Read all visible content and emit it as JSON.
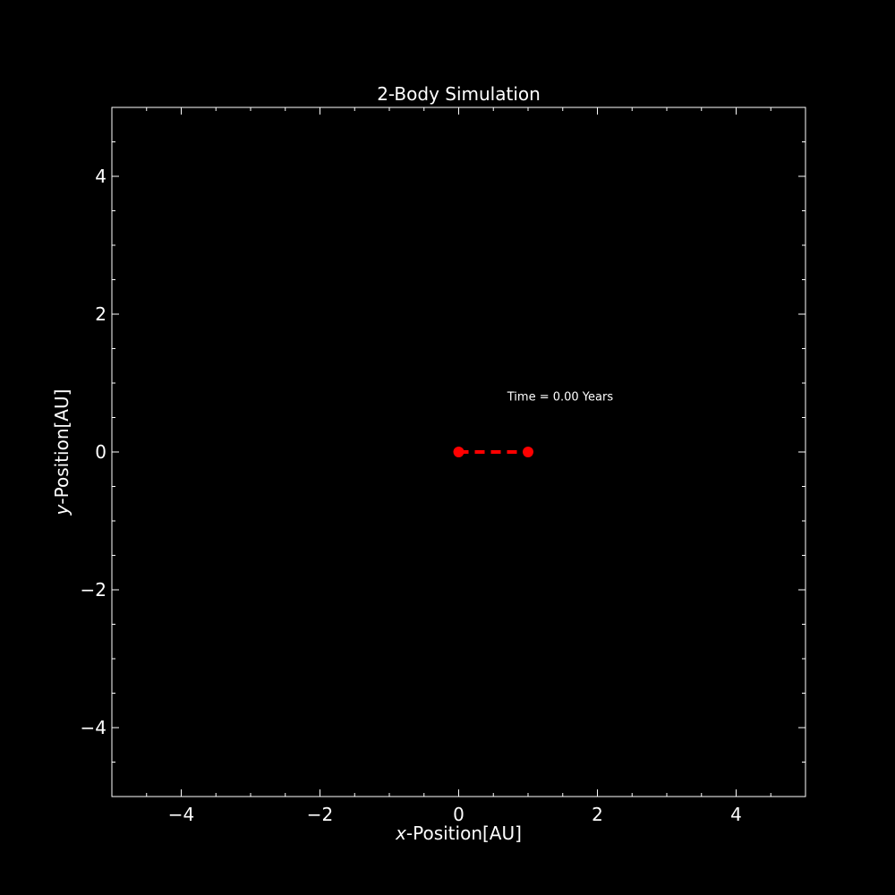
{
  "chart_data": {
    "type": "scatter",
    "title": "2-Body Simulation",
    "xlabel_var": "x",
    "xlabel_rest": "-Position[AU]",
    "ylabel_var": "y",
    "ylabel_rest": "-Position[AU]",
    "xlim": [
      -5,
      5
    ],
    "ylim": [
      -5,
      5
    ],
    "xticks": [
      -4,
      -2,
      0,
      2,
      4
    ],
    "yticks": [
      -4,
      -2,
      0,
      2,
      4
    ],
    "minor_step": 0.5,
    "grid": false,
    "background_color": "#000000",
    "foreground_color": "#ffffff",
    "bodies": [
      {
        "x": 0,
        "y": 0
      },
      {
        "x": 1,
        "y": 0
      }
    ],
    "connector_style": "dashed",
    "body_color": "#ff0000",
    "annotation": {
      "text": "Time = 0.00 Years",
      "x": 0.7,
      "y": 0.75
    }
  }
}
